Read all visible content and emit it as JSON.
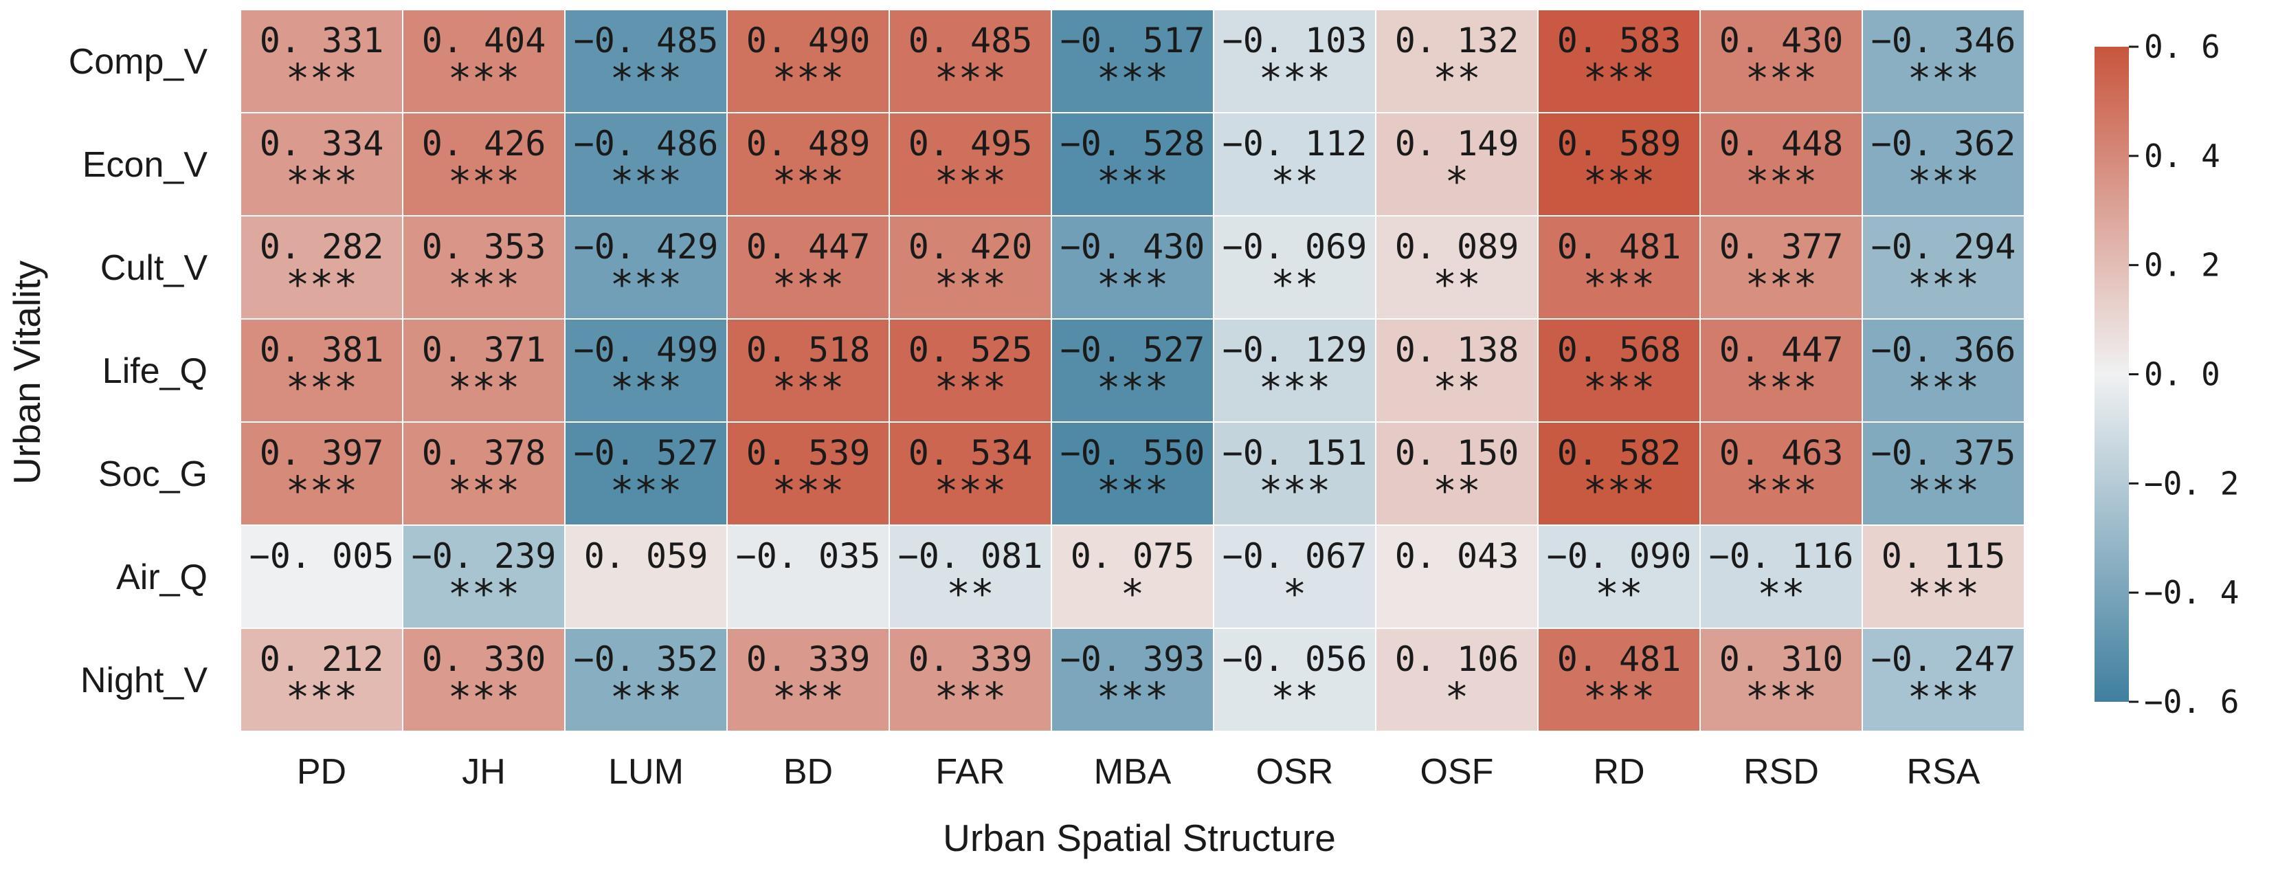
{
  "chart_data": {
    "type": "heatmap",
    "title": "",
    "xlabel": "Urban Spatial Structure",
    "ylabel": "Urban Vitality",
    "x_categories": [
      "PD",
      "JH",
      "LUM",
      "BD",
      "FAR",
      "MBA",
      "OSR",
      "OSF",
      "RD",
      "RSD",
      "RSA"
    ],
    "y_categories": [
      "Comp_V",
      "Econ_V",
      "Cult_V",
      "Life_Q",
      "Soc_G",
      "Air_Q",
      "Night_V"
    ],
    "value_labels": [
      [
        "0. 331",
        "0. 404",
        "−0. 485",
        "0. 490",
        "0. 485",
        "−0. 517",
        "−0. 103",
        "0. 132",
        "0. 583",
        "0. 430",
        "−0. 346"
      ],
      [
        "0. 334",
        "0. 426",
        "−0. 486",
        "0. 489",
        "0. 495",
        "−0. 528",
        "−0. 112",
        "0. 149",
        "0. 589",
        "0. 448",
        "−0. 362"
      ],
      [
        "0. 282",
        "0. 353",
        "−0. 429",
        "0. 447",
        "0. 420",
        "−0. 430",
        "−0. 069",
        "0. 089",
        "0. 481",
        "0. 377",
        "−0. 294"
      ],
      [
        "0. 381",
        "0. 371",
        "−0. 499",
        "0. 518",
        "0. 525",
        "−0. 527",
        "−0. 129",
        "0. 138",
        "0. 568",
        "0. 447",
        "−0. 366"
      ],
      [
        "0. 397",
        "0. 378",
        "−0. 527",
        "0. 539",
        "0. 534",
        "−0. 550",
        "−0. 151",
        "0. 150",
        "0. 582",
        "0. 463",
        "−0. 375"
      ],
      [
        "−0. 005",
        "−0. 239",
        "0. 059",
        "−0. 035",
        "−0. 081",
        "0. 075",
        "−0. 067",
        "0. 043",
        "−0. 090",
        "−0. 116",
        "0. 115"
      ],
      [
        "0. 212",
        "0. 330",
        "−0. 352",
        "0. 339",
        "0. 339",
        "−0. 393",
        "−0. 056",
        "0. 106",
        "0. 481",
        "0. 310",
        "−0. 247"
      ]
    ],
    "significance": [
      [
        "***",
        "***",
        "***",
        "***",
        "***",
        "***",
        "***",
        "**",
        "***",
        "***",
        "***"
      ],
      [
        "***",
        "***",
        "***",
        "***",
        "***",
        "***",
        "**",
        "*",
        "***",
        "***",
        "***"
      ],
      [
        "***",
        "***",
        "***",
        "***",
        "***",
        "***",
        "**",
        "**",
        "***",
        "***",
        "***"
      ],
      [
        "***",
        "***",
        "***",
        "***",
        "***",
        "***",
        "***",
        "**",
        "***",
        "***",
        "***"
      ],
      [
        "***",
        "***",
        "***",
        "***",
        "***",
        "***",
        "***",
        "**",
        "***",
        "***",
        "***"
      ],
      [
        "",
        "***",
        "",
        "",
        "**",
        "*",
        "*",
        "",
        "**",
        "**",
        "***"
      ],
      [
        "***",
        "***",
        "***",
        "***",
        "***",
        "***",
        "**",
        "*",
        "***",
        "***",
        "***"
      ]
    ],
    "colorbar": {
      "range": [
        -0.6,
        0.6
      ],
      "tick_values": [
        0.6,
        0.4,
        0.2,
        0.0,
        -0.2,
        -0.4,
        -0.6
      ],
      "tick_labels": [
        "0. 6",
        "0. 4",
        "0. 2",
        "0. 0",
        "−0. 2",
        "−0. 4",
        "−0. 6"
      ],
      "colors": {
        "low": "#3f7f9f",
        "mid": "#f0f1f2",
        "high": "#c8553d"
      }
    }
  }
}
